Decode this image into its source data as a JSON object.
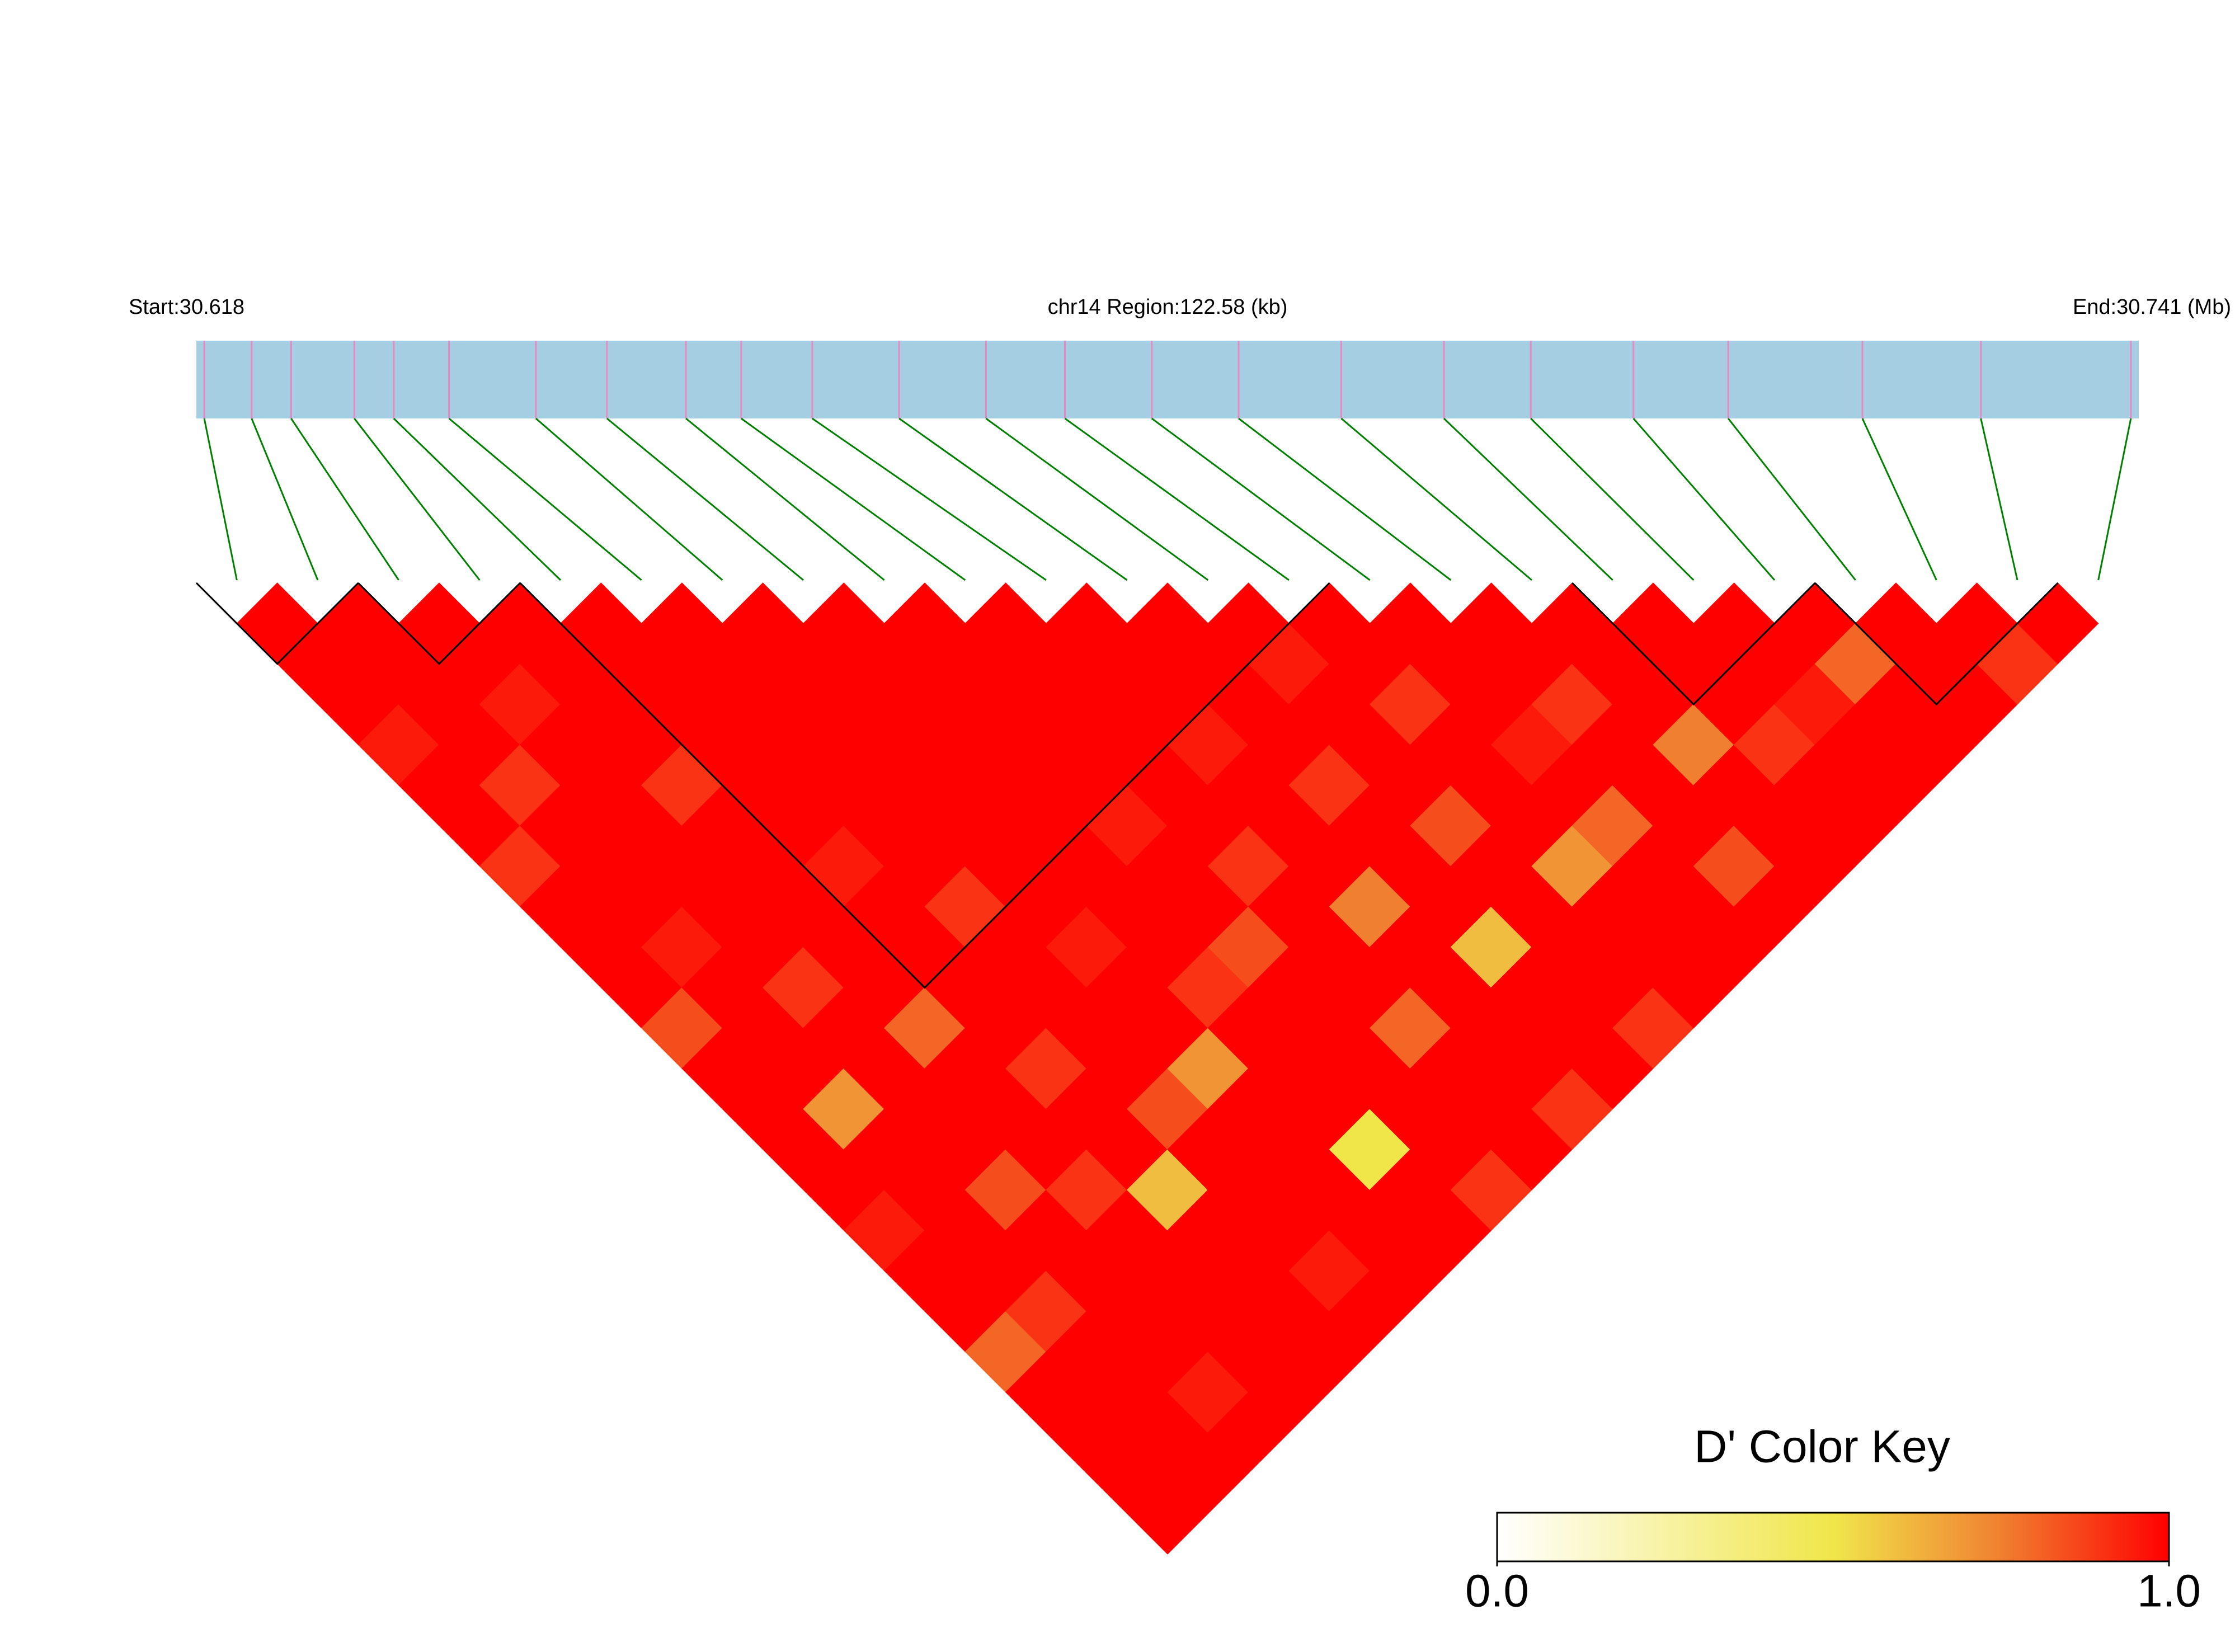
{
  "chart_data": {
    "type": "ld_heatmap",
    "start_label": "Start:30.618",
    "region_label": "chr14 Region:122.58 (kb)",
    "end_label": "End:30.741 (Mb)",
    "xlim": [
      30.618,
      30.741
    ],
    "bar_color": "#a6cee3",
    "snp_color": "#e78ac3",
    "connector_color": "#008000",
    "positions": [
      30.6185,
      30.6215,
      30.624,
      30.628,
      30.6305,
      30.634,
      30.6395,
      30.644,
      30.649,
      30.6525,
      30.657,
      30.6625,
      30.668,
      30.673,
      30.6785,
      30.684,
      30.6905,
      30.697,
      30.7025,
      30.709,
      30.715,
      30.7235,
      30.731,
      30.7405
    ],
    "d_prime": [
      [
        1,
        1,
        1,
        0.95,
        1,
        1,
        0.9,
        1,
        1,
        1,
        0.85,
        1,
        1,
        1,
        1,
        0.95,
        1,
        1,
        0.8,
        1,
        1,
        1,
        1
      ],
      [
        1,
        1,
        1,
        1,
        0.9,
        1,
        1,
        1,
        0.95,
        1,
        1,
        1,
        0.7,
        1,
        1,
        1,
        1,
        0.9,
        1,
        1,
        1,
        1
      ],
      [
        1,
        1,
        0.95,
        1,
        1,
        1,
        1,
        1,
        1,
        0.9,
        1,
        1,
        1,
        1,
        0.85,
        1,
        1,
        1,
        1,
        0.95,
        1
      ],
      [
        1,
        1,
        1,
        1,
        0.9,
        1,
        1,
        1,
        1,
        1,
        0.8,
        1,
        1,
        1,
        0.9,
        1,
        1,
        1,
        1,
        1
      ],
      [
        1,
        1,
        1,
        1,
        1,
        1,
        0.95,
        1,
        1,
        1,
        1,
        0.9,
        1,
        1,
        0.6,
        1,
        1,
        1,
        1
      ],
      [
        1,
        1,
        1,
        1,
        1,
        1,
        1,
        0.9,
        1,
        1,
        1,
        1,
        0.85,
        1,
        1,
        1,
        0.95,
        1
      ],
      [
        1,
        1,
        1,
        1,
        1,
        1,
        1,
        1,
        0.95,
        1,
        1,
        0.7,
        1,
        1,
        1,
        1,
        1
      ],
      [
        1,
        1,
        1,
        1,
        1,
        1,
        1,
        1,
        1,
        0.9,
        1,
        1,
        1,
        0.5,
        1,
        1
      ],
      [
        1,
        1,
        1,
        1,
        1,
        0.95,
        1,
        1,
        0.85,
        1,
        1,
        1,
        1,
        1,
        0.9
      ],
      [
        1,
        1,
        1,
        1,
        1,
        1,
        0.9,
        1,
        1,
        1,
        0.8,
        1,
        1,
        1
      ],
      [
        1,
        1,
        1,
        0.95,
        1,
        1,
        1,
        0.75,
        1,
        1,
        1,
        1,
        0.9
      ],
      [
        1,
        1,
        1,
        1,
        0.9,
        1,
        1,
        1,
        0.6,
        1,
        1,
        1
      ],
      [
        1,
        0.95,
        1,
        1,
        1,
        0.85,
        1,
        1,
        1,
        1,
        0.9
      ],
      [
        1,
        1,
        0.9,
        1,
        1,
        1,
        0.7,
        1,
        1,
        1
      ],
      [
        1,
        1,
        1,
        0.95,
        1,
        0.8,
        1,
        1,
        1
      ],
      [
        1,
        1,
        0.9,
        1,
        1,
        1,
        0.85,
        1
      ],
      [
        1,
        1,
        1,
        0.75,
        1,
        1,
        1
      ],
      [
        1,
        1,
        1,
        0.9,
        1,
        1
      ],
      [
        1,
        1,
        0.95,
        1,
        1
      ],
      [
        1,
        0.8,
        1,
        1
      ],
      [
        1,
        1,
        1
      ],
      [
        1,
        0.9
      ],
      [
        1
      ]
    ],
    "blocks": [
      [
        0,
        1
      ],
      [
        2,
        3
      ],
      [
        4,
        13
      ],
      [
        17,
        19
      ],
      [
        20,
        22
      ]
    ],
    "colorbar": {
      "title": "D' Color Key",
      "lim": [
        0,
        1
      ],
      "ticks": [
        {
          "value": 0,
          "label": "0.0"
        },
        {
          "value": 1,
          "label": "1.0"
        }
      ]
    }
  }
}
